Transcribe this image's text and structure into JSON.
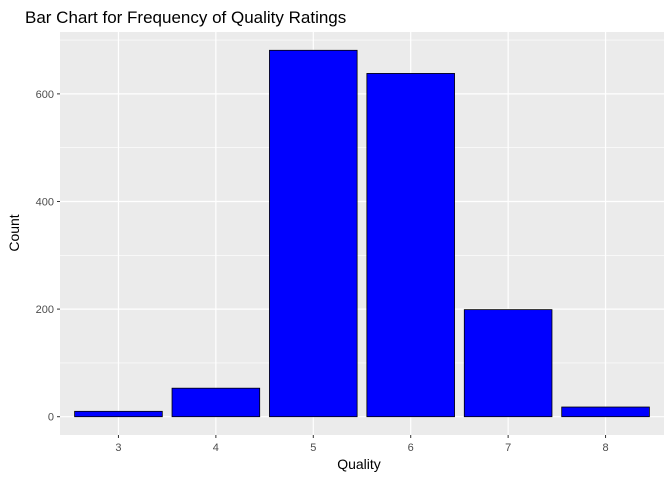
{
  "chart_data": {
    "type": "bar",
    "title": "Bar Chart for Frequency of Quality Ratings",
    "xlabel": "Quality",
    "ylabel": "Count",
    "categories": [
      "3",
      "4",
      "5",
      "6",
      "7",
      "8"
    ],
    "values": [
      10,
      53,
      681,
      638,
      199,
      18
    ],
    "y_ticks": [
      0,
      200,
      400,
      600
    ],
    "y_tick_labels": [
      "0",
      "200",
      "400",
      "600"
    ],
    "ylim": [
      -34,
      715
    ],
    "grid": true,
    "legend": "none",
    "colors": {
      "bar_fill": "#0000ff",
      "bar_stroke": "#000000",
      "panel_background": "#ebebeb",
      "grid_major": "#ffffff",
      "tick_text": "#4d4d4d"
    }
  }
}
